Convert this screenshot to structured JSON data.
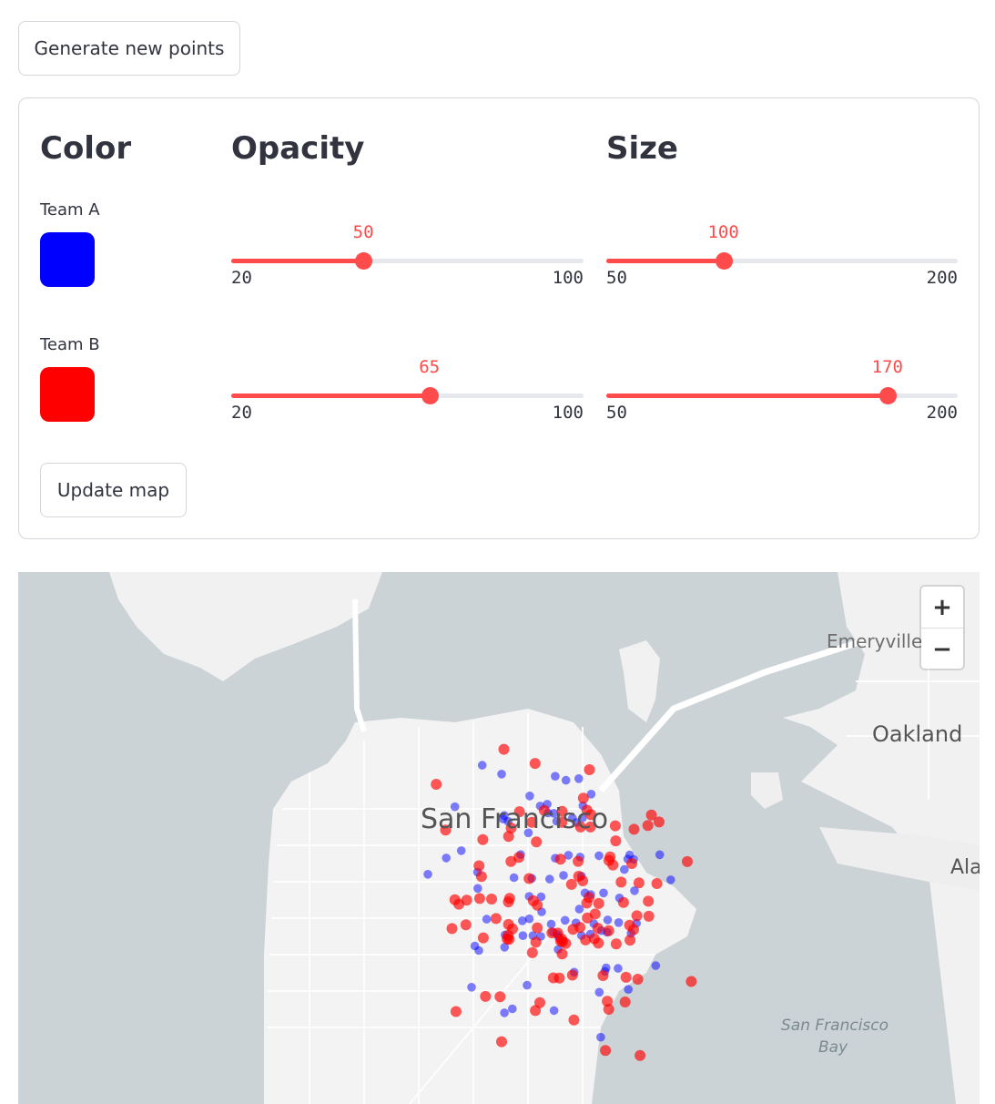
{
  "generate_button": "Generate new points",
  "update_button": "Update map",
  "headers": {
    "color": "Color",
    "opacity": "Opacity",
    "size": "Size"
  },
  "teams": [
    {
      "label": "Team A",
      "color": "#0000ff",
      "opacity": {
        "value": 50,
        "min": 20,
        "max": 100
      },
      "size": {
        "value": 100,
        "min": 50,
        "max": 200
      }
    },
    {
      "label": "Team B",
      "color": "#ff0000",
      "opacity": {
        "value": 65,
        "min": 20,
        "max": 100
      },
      "size": {
        "value": 170,
        "min": 50,
        "max": 200
      }
    }
  ],
  "slider_accent": "#ff4b4b",
  "map": {
    "labels": {
      "san_francisco": "San Francisco",
      "emeryville": "Emeryville",
      "oakland": "Oakland",
      "alameda": "Ala",
      "bay_line1": "San Francisco",
      "bay_line2": "Bay"
    },
    "zoom_in_icon": "plus-icon",
    "zoom_out_icon": "minus-icon"
  }
}
